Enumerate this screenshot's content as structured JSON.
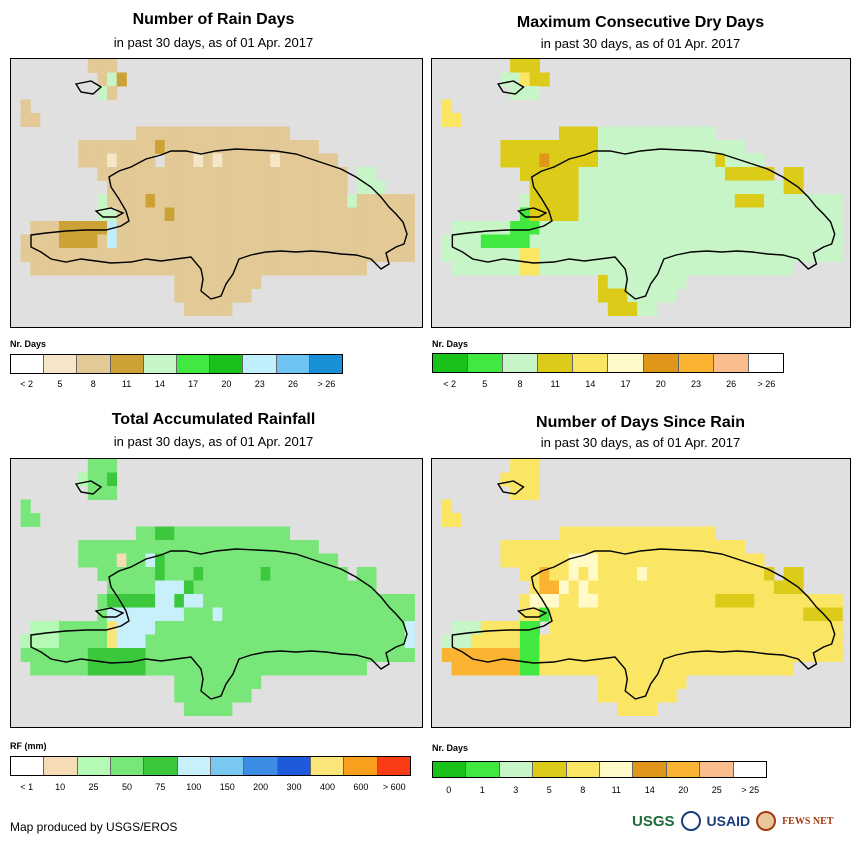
{
  "panels": [
    {
      "id": "rain-days",
      "title": "Number of Rain Days",
      "subtitle": "in past 30 days, as of 01 Apr. 2017",
      "legend_title": "Nr. Days",
      "legend_colors": [
        "#ffffff",
        "#f5e6c8",
        "#e2c996",
        "#cca237",
        "#c8f5c8",
        "#40e840",
        "#19c219",
        "#bfeffa",
        "#6ec2f4",
        "#1891d8"
      ],
      "legend_labels": [
        "< 2",
        "5",
        "8",
        "11",
        "14",
        "17",
        "20",
        "23",
        "26",
        "> 26"
      ],
      "cells": "0000000022200000000000000000000000000000000/0000000002430000000000000000000000000000000/0000000004200000000000000000000000000000000/0200000000000000000000000000000000000000000/0220000000000000000000000000000000000000000/0000000000000222222222222222200000000000000/0000000222222223222222222222222200000000000/0000000222122220222121222221222222000000000/0000000002222222222222222222222222204400000/0000000000222222222222222222222222204440000/0000000004222232222222222222222222242222220/0000000004422222322222222222222222222222220/0022233333722222222222222222222222222222220/0222233332722222222222222222222222222222220/0222222222222222222222222222222222222222220/0022222222222222222222222222222222222000000/0000000000000000022222222200000000000000000/0000000000000000022222222000000000000000000/0000000000000000002222200000000000000000000/0000000000000000000000000000000000000000000"
    },
    {
      "id": "dry-days",
      "title": "Maximum Consecutive Dry Days",
      "subtitle": "in past 30 days, as of 01 Apr. 2017",
      "legend_title": "Nr. Days",
      "legend_colors": [
        "#19c219",
        "#40e840",
        "#c8f5c8",
        "#dccc19",
        "#fae664",
        "#fffac8",
        "#e09619",
        "#fab432",
        "#fabe8c",
        "#ffffff"
      ],
      "legend_labels": [
        "< 2",
        "5",
        "8",
        "11",
        "14",
        "17",
        "20",
        "23",
        "26",
        "> 26"
      ],
      "cells": "0000000033300000000000000000000000000000000/0000000224330000000000000000000000000000000/0000000022200000000000000000000000000000000/0400000000000000000000000000000000000000000/0440000000000000000000000000000000000000000/0000000000000333322222222222200000000000000/0000000333333333322222222222222200000000000/0000000333363333322222222222232222000000000/0000000003333332222222222222223333303300000/0000000000333332222222222222222222223300000/0000000002333332222222222222222333222222220/0000000001333332222222222222222222222222220/0022222211122222222222222222222222222222220/0222211111222222222222222222222222222222220/0222222224422222222222222222222222222222220/0022222224422222222222222222222222222000000/0000000000000000032222222200000000000000000/0000000000000000033322222000000000000000000/0000000000000000003332200000000000000000000/0000000000000000000000000000000000000000000"
    },
    {
      "id": "rainfall",
      "title": "Total Accumulated Rainfall",
      "subtitle": "in past 30 days, as of 01 Apr. 2017",
      "legend_title": "RF (mm)",
      "legend_colors": [
        "#ffffff",
        "#f5dcb4",
        "#b4fab4",
        "#78e678",
        "#3cc83c",
        "#c8f0fa",
        "#78c8f0",
        "#3c8ce6",
        "#1e5adc",
        "#fae678",
        "#faa01e",
        "#fa3c14"
      ],
      "legend_labels": [
        "< 1",
        "10",
        "25",
        "50",
        "75",
        "100",
        "150",
        "200",
        "300",
        "400",
        "600",
        "> 600"
      ],
      "cells": "0000000033300000000000000000000000000000000/0000000233400000000000000000000000000000000/0000000033300000000000000000000000000000000/0300000000000000000000000000000000000000000/0330000000000000000000000000000000000000000/0000000000000334433333333333300000000000000/0000000333333333333333333333333300000000000/0000000333313354333333333333333333000000000/0000000003333334333433333343333333303300000/0000000000333335554333333333333333333300000/0000000003444445545533333333333333333333330/0000000003555555553335333333333333333333330/0022233333955553333333333333333333333333350/0222233333955533333333333333333333333333350/0333333344444433333333333333333333333333330/0033333344444433333333333333333333333000000/0000000000000000033333333300000000000000000/0000000000000000033333333000000000000000000/0000000000000000003333300000000000000000000/0000000000000000000000000000000000000000000"
    },
    {
      "id": "since-rain",
      "title": "Number of Days Since Rain",
      "subtitle": "in past 30 days, as of 01 Apr. 2017",
      "legend_title": "Nr. Days",
      "legend_colors": [
        "#19c219",
        "#40e840",
        "#c8f5c8",
        "#dccc19",
        "#fae664",
        "#fffac8",
        "#e09619",
        "#fab432",
        "#fabe8c",
        "#ffffff"
      ],
      "legend_labels": [
        "0",
        "1",
        "3",
        "5",
        "8",
        "11",
        "14",
        "20",
        "25",
        "> 25"
      ],
      "cells": "0000000044400000000000000000000000000000000/0000000444400000000000000000000000000000000/0000000044400000000000000000000000000000000/0400000000000000000000000000000000000000000/0440000000000000000000000000000000000000000/0000000000000444444444444444400000000000000/0000000444444444444444444444444400000000000/0000000444444455544444444444444444000000000/0000000004474454544445444444444444303300000/0000000000477545444444444444444444433300000/0000000004555445544444444444433334444444440/0000000004414444444444444444444444444433330/0022244441104444444444444444444444444444440/0222444441144444444444444444444444444444440/0777777771144444444444444444444444444444440/0077777771144444444444444444444444444000000/0000000000000000044444444400000000000000000/0000000000000000044444444000000000000000000/0000000000000000000444400000000000000000000/0000000000000000000000000000000000000000000"
    }
  ],
  "footer": {
    "credit": "Map produced by USGS/EROS",
    "logo_usgs": "USGS",
    "logo_usaid": "USAID",
    "logo_fews": "FEWS NET"
  }
}
